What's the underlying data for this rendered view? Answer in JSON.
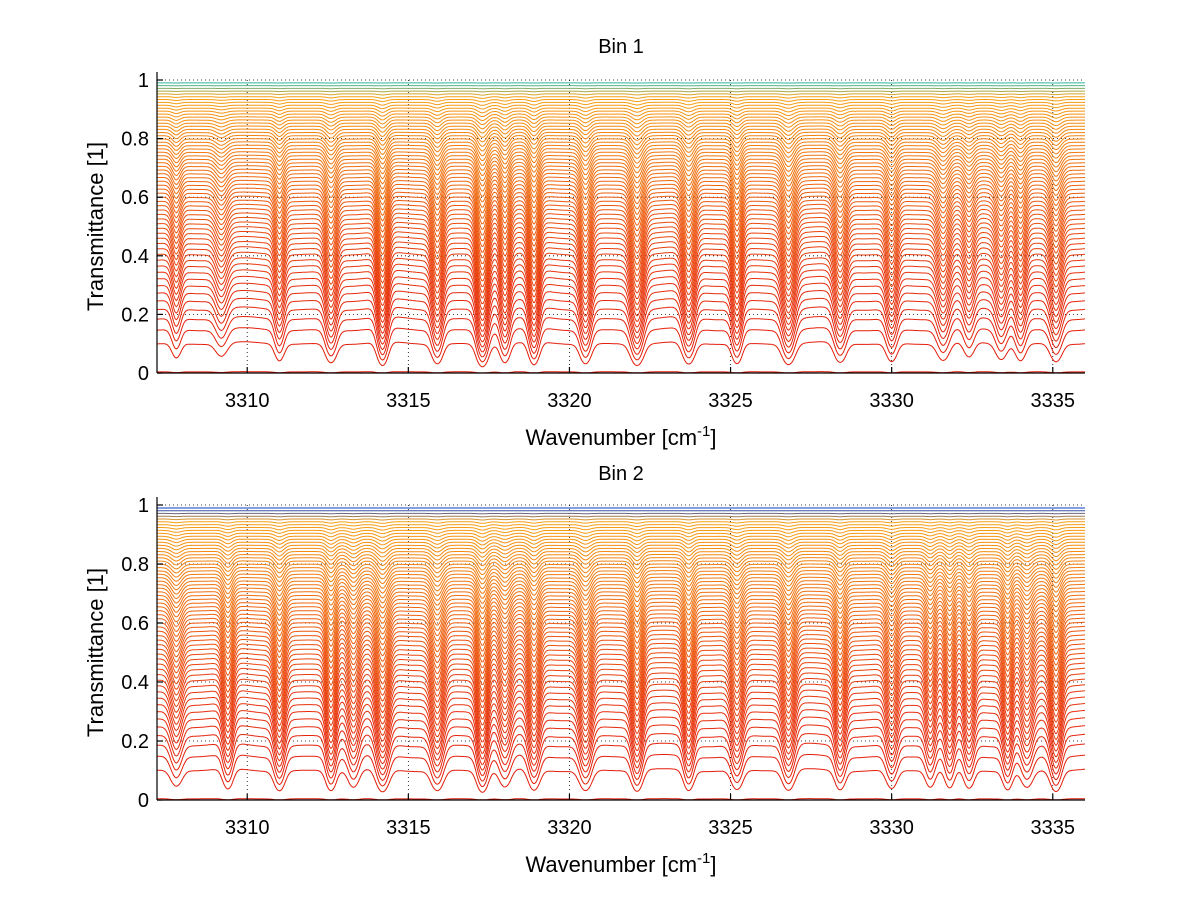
{
  "chart_data": [
    {
      "type": "line",
      "title": "Bin 1",
      "xlabel": "Wavenumber [cm",
      "xlabel_sup": "-1",
      "xlabel_close": "]",
      "ylabel": "Transmittance [1]",
      "xlim": [
        3307.2,
        3336.0
      ],
      "ylim": [
        0,
        1
      ],
      "xticks": [
        "3310",
        "3315",
        "3320",
        "3325",
        "3330",
        "3335"
      ],
      "yticks": [
        "0",
        "0.2",
        "0.4",
        "0.6",
        "0.8",
        "1"
      ],
      "grid": true,
      "n_curves": 60,
      "line_centers": [
        3307.8,
        3309.2,
        3311.0,
        3312.6,
        3314.2,
        3315.9,
        3317.3,
        3318.0,
        3318.9,
        3320.5,
        3322.1,
        3323.7,
        3325.2,
        3326.8,
        3328.4,
        3330.0,
        3331.6,
        3332.4,
        3333.4,
        3334.0,
        3335.1
      ],
      "line_depths": [
        0.35,
        0.3,
        0.45,
        0.55,
        0.75,
        0.6,
        0.8,
        0.55,
        0.7,
        0.6,
        0.7,
        0.65,
        0.6,
        0.65,
        0.55,
        0.5,
        0.45,
        0.35,
        0.4,
        0.45,
        0.5
      ],
      "colors": {
        "low": "#e41a0a",
        "mid": "#f06a10",
        "high": "#f7a012",
        "top": "#2ab7a0"
      }
    },
    {
      "type": "line",
      "title": "Bin 2",
      "xlabel": "Wavenumber [cm",
      "xlabel_sup": "-1",
      "xlabel_close": "]",
      "ylabel": "Transmittance [1]",
      "xlim": [
        3307.2,
        3336.0
      ],
      "ylim": [
        0,
        1
      ],
      "xticks": [
        "3310",
        "3315",
        "3320",
        "3325",
        "3330",
        "3335"
      ],
      "yticks": [
        "0",
        "0.2",
        "0.4",
        "0.6",
        "0.8",
        "1"
      ],
      "grid": true,
      "n_curves": 60,
      "line_centers": [
        3307.8,
        3309.4,
        3311.0,
        3312.6,
        3313.3,
        3314.2,
        3315.9,
        3317.3,
        3318.0,
        3318.9,
        3320.5,
        3322.1,
        3323.7,
        3325.2,
        3326.8,
        3328.4,
        3330.0,
        3331.2,
        3331.8,
        3332.4,
        3333.6,
        3334.2,
        3335.1
      ],
      "line_depths": [
        0.4,
        0.55,
        0.6,
        0.6,
        0.45,
        0.7,
        0.6,
        0.7,
        0.45,
        0.6,
        0.6,
        0.65,
        0.6,
        0.55,
        0.6,
        0.55,
        0.5,
        0.45,
        0.5,
        0.5,
        0.55,
        0.45,
        0.65
      ],
      "colors": {
        "low": "#e41a0a",
        "mid": "#f06a10",
        "high": "#f7a012",
        "top": "#0a3cc8"
      }
    }
  ]
}
